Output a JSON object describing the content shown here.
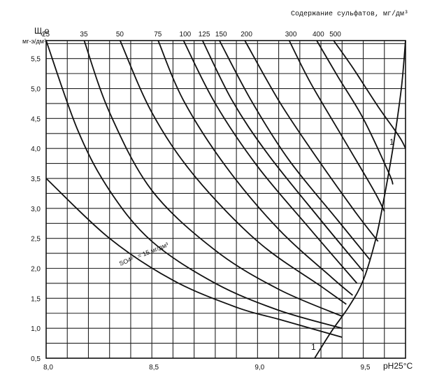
{
  "chart_data": {
    "type": "line",
    "title": "Содержание сульфатов, мг/дм³",
    "ylabel_main": "Щ,о",
    "ylabel_units": "мг-э/дм³",
    "xlabel": "pH25°C",
    "xlim": [
      8.0,
      9.7
    ],
    "ylim": [
      0.5,
      5.8
    ],
    "x_ticks": [
      "8,0",
      "8,5",
      "9,0",
      "9,5"
    ],
    "y_ticks": [
      "0,5",
      "1,0",
      "1,5",
      "2,0",
      "2,5",
      "3,0",
      "3,5",
      "4,0",
      "4,5",
      "5,0",
      "5,5"
    ],
    "top_axis_label": "Содержание сульфатов, мг/дм³",
    "top_ticks": [
      "25",
      "35",
      "50",
      "75",
      "100",
      "125",
      "150",
      "200",
      "300",
      "400",
      "500"
    ],
    "series": [
      {
        "name": "SO4²⁻ = 15 мг/дм³",
        "values": [
          [
            8.0,
            3.5
          ],
          [
            8.3,
            2.5
          ],
          [
            8.6,
            1.8
          ],
          [
            8.9,
            1.35
          ],
          [
            9.1,
            1.15
          ],
          [
            9.3,
            0.95
          ],
          [
            9.4,
            0.85
          ]
        ]
      },
      {
        "name": "25",
        "values": [
          [
            8.0,
            5.8
          ],
          [
            8.15,
            4.3
          ],
          [
            8.3,
            3.3
          ],
          [
            8.5,
            2.45
          ],
          [
            8.8,
            1.75
          ],
          [
            9.1,
            1.3
          ],
          [
            9.4,
            1.0
          ]
        ]
      },
      {
        "name": "35",
        "values": [
          [
            8.18,
            5.8
          ],
          [
            8.3,
            4.6
          ],
          [
            8.5,
            3.3
          ],
          [
            8.8,
            2.3
          ],
          [
            9.1,
            1.65
          ],
          [
            9.4,
            1.2
          ]
        ]
      },
      {
        "name": "50",
        "values": [
          [
            8.35,
            5.8
          ],
          [
            8.5,
            4.6
          ],
          [
            8.7,
            3.55
          ],
          [
            9.0,
            2.45
          ],
          [
            9.3,
            1.7
          ],
          [
            9.42,
            1.4
          ]
        ]
      },
      {
        "name": "75",
        "values": [
          [
            8.53,
            5.8
          ],
          [
            8.65,
            4.8
          ],
          [
            8.85,
            3.7
          ],
          [
            9.1,
            2.65
          ],
          [
            9.35,
            1.85
          ],
          [
            9.45,
            1.55
          ]
        ]
      },
      {
        "name": "100",
        "values": [
          [
            8.65,
            5.8
          ],
          [
            8.8,
            4.75
          ],
          [
            9.0,
            3.7
          ],
          [
            9.25,
            2.65
          ],
          [
            9.47,
            1.75
          ]
        ]
      },
      {
        "name": "125",
        "values": [
          [
            8.74,
            5.8
          ],
          [
            8.88,
            4.8
          ],
          [
            9.05,
            3.9
          ],
          [
            9.3,
            2.8
          ],
          [
            9.5,
            1.95
          ]
        ]
      },
      {
        "name": "150",
        "values": [
          [
            8.82,
            5.8
          ],
          [
            8.97,
            4.8
          ],
          [
            9.15,
            3.8
          ],
          [
            9.38,
            2.8
          ],
          [
            9.53,
            2.15
          ]
        ]
      },
      {
        "name": "200",
        "values": [
          [
            8.94,
            5.8
          ],
          [
            9.1,
            4.8
          ],
          [
            9.25,
            4.0
          ],
          [
            9.45,
            3.0
          ],
          [
            9.57,
            2.45
          ]
        ]
      },
      {
        "name": "300",
        "values": [
          [
            9.15,
            5.8
          ],
          [
            9.25,
            5.1
          ],
          [
            9.4,
            4.2
          ],
          [
            9.55,
            3.3
          ],
          [
            9.6,
            2.95
          ]
        ]
      },
      {
        "name": "400",
        "values": [
          [
            9.28,
            5.8
          ],
          [
            9.38,
            5.2
          ],
          [
            9.5,
            4.5
          ],
          [
            9.62,
            3.6
          ],
          [
            9.64,
            3.4
          ]
        ]
      },
      {
        "name": "500",
        "values": [
          [
            9.36,
            5.8
          ],
          [
            9.45,
            5.35
          ],
          [
            9.57,
            4.7
          ],
          [
            9.67,
            4.2
          ],
          [
            9.7,
            4.0
          ]
        ]
      }
    ],
    "boundary_curve": {
      "name": "1",
      "values": [
        [
          9.27,
          0.5
        ],
        [
          9.35,
          0.95
        ],
        [
          9.43,
          1.35
        ],
        [
          9.5,
          1.8
        ],
        [
          9.56,
          2.5
        ],
        [
          9.6,
          3.2
        ],
        [
          9.64,
          4.0
        ],
        [
          9.68,
          5.0
        ],
        [
          9.7,
          5.8
        ]
      ]
    },
    "boundary_labels": [
      "1",
      "1"
    ],
    "grid": true
  }
}
